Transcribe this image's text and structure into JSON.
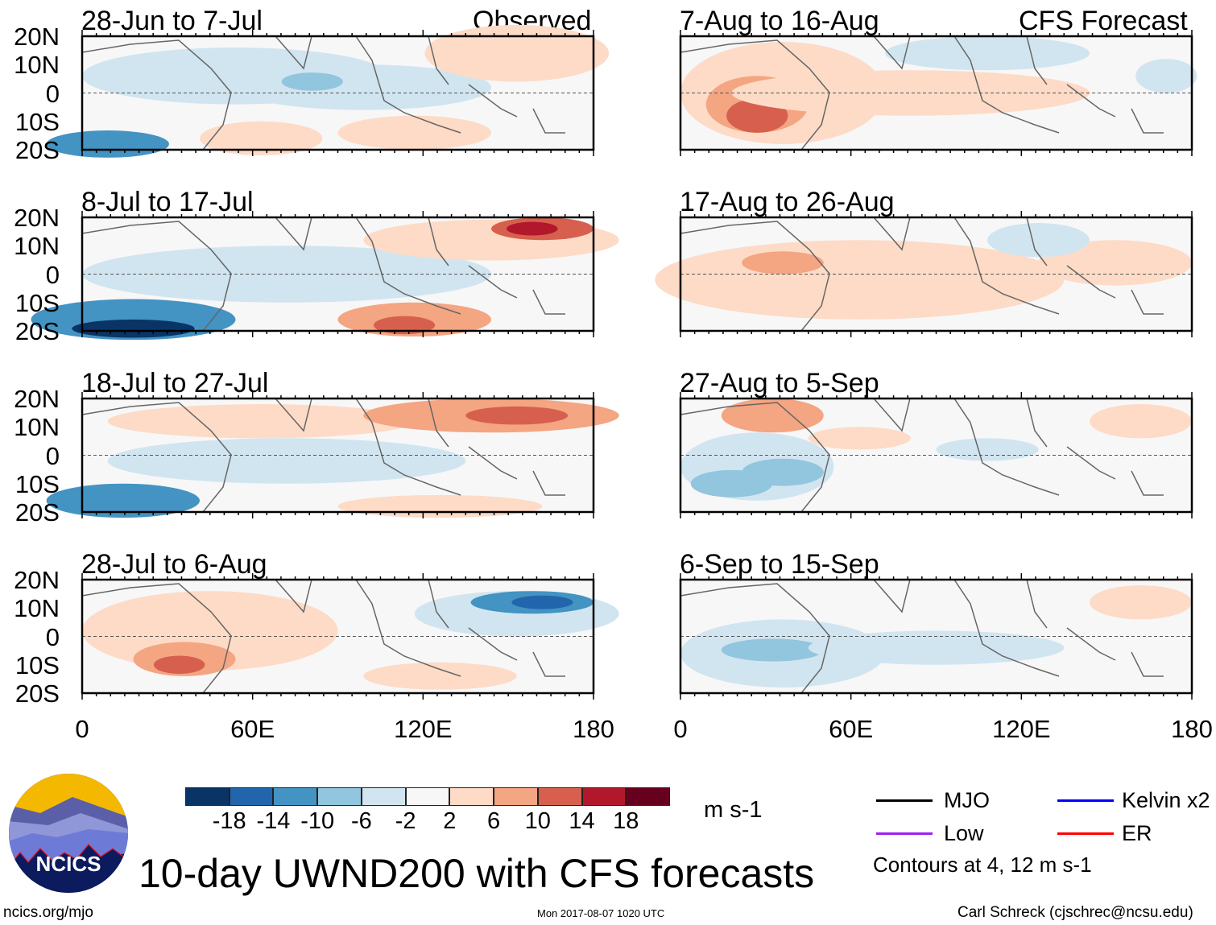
{
  "header": {
    "left_label": "Observed",
    "right_label": "CFS Forecast"
  },
  "panels": [
    {
      "title": "28-Jun to 7-Jul",
      "group": "observed"
    },
    {
      "title": "8-Jul to 17-Jul",
      "group": "observed"
    },
    {
      "title": "18-Jul to 27-Jul",
      "group": "observed"
    },
    {
      "title": "28-Jul to 6-Aug",
      "group": "observed"
    },
    {
      "title": "7-Aug to 16-Aug",
      "group": "forecast"
    },
    {
      "title": "17-Aug to 26-Aug",
      "group": "forecast"
    },
    {
      "title": "27-Aug to 5-Sep",
      "group": "forecast"
    },
    {
      "title": "6-Sep to 15-Sep",
      "group": "forecast"
    }
  ],
  "axes": {
    "lat_labels": [
      "20N",
      "10N",
      "0",
      "10S",
      "20S"
    ],
    "lon_labels": [
      "0",
      "60E",
      "120E",
      "180"
    ]
  },
  "colorbar": {
    "labels": [
      "-18",
      "-14",
      "-10",
      "-6",
      "-2",
      "2",
      "6",
      "10",
      "14",
      "18"
    ],
    "colors": [
      "#0a3466",
      "#2166ac",
      "#4393c3",
      "#92c5de",
      "#d1e5f0",
      "#f7f7f7",
      "#fddbc7",
      "#f4a582",
      "#d6604d",
      "#b2182b",
      "#67001f"
    ],
    "units": "m s-1"
  },
  "legend": {
    "items": [
      {
        "label": "MJO",
        "color": "#000000"
      },
      {
        "label": "Kelvin x2",
        "color": "#0000ff"
      },
      {
        "label": "Low",
        "color": "#a020f0"
      },
      {
        "label": "ER",
        "color": "#ff0000"
      }
    ],
    "note": "Contours at 4, 12 m s-1"
  },
  "footer": {
    "title": "10-day UWND200 with CFS forecasts",
    "logo_text": "NCICS",
    "url": "ncics.org/mjo",
    "timestamp": "Mon 2017-08-07 1020 UTC",
    "credit": "Carl Schreck (cjschrec@ncsu.edu)"
  }
}
